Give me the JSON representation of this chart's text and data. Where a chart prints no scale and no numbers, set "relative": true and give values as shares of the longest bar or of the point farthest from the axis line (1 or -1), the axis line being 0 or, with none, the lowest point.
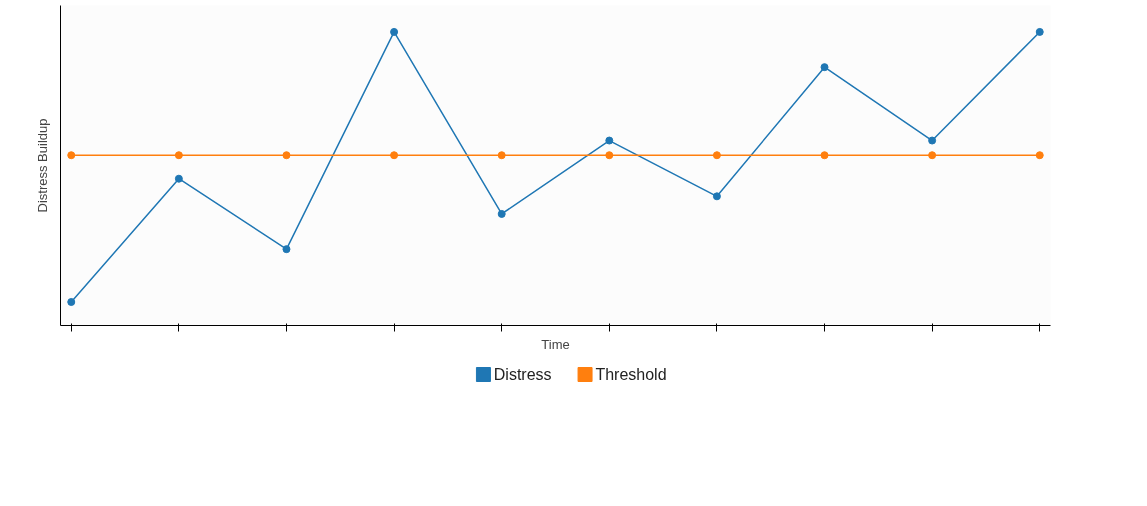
{
  "chart_data": {
    "type": "line",
    "relative": true,
    "xlabel": "Time",
    "ylabel": "Distress Buildup",
    "categories": [
      null,
      null,
      null,
      null,
      null,
      null,
      null,
      null,
      null,
      null
    ],
    "series": [
      {
        "name": "Distress",
        "color": "#1f77b4",
        "values": [
          0.08,
          0.5,
          0.26,
          1,
          0.38,
          0.63,
          0.44,
          0.88,
          0.63,
          1
        ]
      },
      {
        "name": "Threshold",
        "color": "#ff7f0e",
        "values": [
          0.58,
          0.58,
          0.58,
          0.58,
          0.58,
          0.58,
          0.58,
          0.58,
          0.58,
          0.58
        ]
      }
    ],
    "marker": "circle",
    "line_style": "solid",
    "legend": "bottom"
  }
}
